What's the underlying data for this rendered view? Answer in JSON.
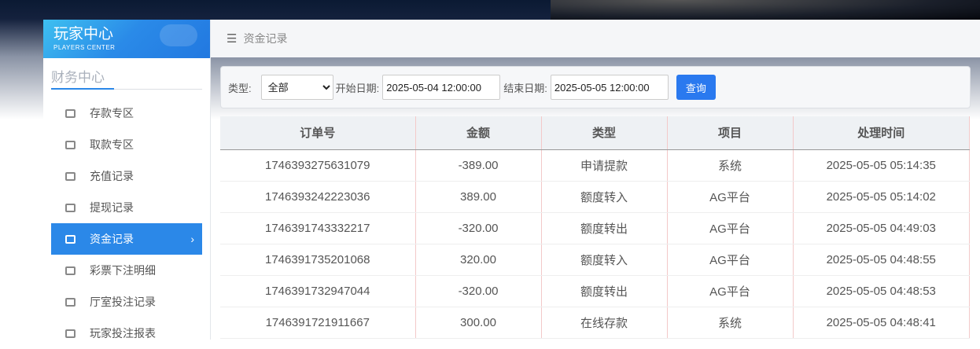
{
  "sidebar": {
    "logo_title": "玩家中心",
    "logo_subtitle": "PLAYERS CENTER",
    "section": "财务中心",
    "items": [
      {
        "label": "存款专区",
        "icon": "card-icon"
      },
      {
        "label": "取款专区",
        "icon": "hand-money-icon"
      },
      {
        "label": "充值记录",
        "icon": "money-bag-icon"
      },
      {
        "label": "提现记录",
        "icon": "wallet-icon"
      },
      {
        "label": "资金记录",
        "icon": "funds-icon",
        "active": true
      },
      {
        "label": "彩票下注明细",
        "icon": "list-icon"
      },
      {
        "label": "厅室投注记录",
        "icon": "bullet-list-icon"
      },
      {
        "label": "玩家投注报表",
        "icon": "chart-icon"
      }
    ]
  },
  "header": {
    "title": "资金记录"
  },
  "filter": {
    "type_label": "类型:",
    "type_value": "全部",
    "start_label": "开始日期:",
    "start_value": "2025-05-04 12:00:00",
    "end_label": "结束日期:",
    "end_value": "2025-05-05 12:00:00",
    "query_label": "查询"
  },
  "table": {
    "columns": [
      "订单号",
      "金额",
      "类型",
      "项目",
      "处理时间"
    ],
    "rows": [
      [
        "1746393275631079",
        "-389.00",
        "申请提款",
        "系统",
        "2025-05-05 05:14:35"
      ],
      [
        "1746393242223036",
        "389.00",
        "额度转入",
        "AG平台",
        "2025-05-05 05:14:02"
      ],
      [
        "1746391743332217",
        "-320.00",
        "额度转出",
        "AG平台",
        "2025-05-05 04:49:03"
      ],
      [
        "1746391735201068",
        "320.00",
        "额度转入",
        "AG平台",
        "2025-05-05 04:48:55"
      ],
      [
        "1746391732947044",
        "-320.00",
        "额度转出",
        "AG平台",
        "2025-05-05 04:48:53"
      ],
      [
        "1746391721911667",
        "300.00",
        "在线存款",
        "系统",
        "2025-05-05 04:48:41"
      ]
    ]
  },
  "colors": {
    "accent": "#2b88e8",
    "button": "#2a79ef"
  }
}
